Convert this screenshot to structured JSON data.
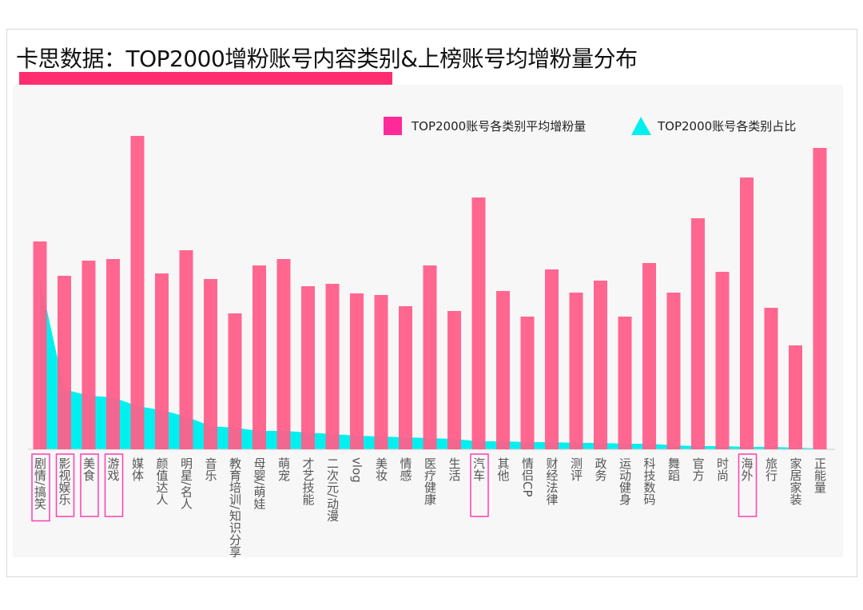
{
  "chart_data": {
    "type": "bar",
    "title": "卡思数据：TOP2000增粉账号内容类别&上榜账号均增粉量分布",
    "xlabel": "",
    "ylabel": "",
    "grid": false,
    "legend_position": "top-right",
    "categories": [
      "剧情/搞笑",
      "影视娱乐",
      "美食",
      "游戏",
      "媒体",
      "颜值达人",
      "明星/名人",
      "音乐",
      "教育培训/知识分享",
      "母婴/萌娃",
      "萌宠",
      "才艺技能",
      "二次元/动漫",
      "vlog",
      "美妆",
      "情感",
      "医疗健康",
      "生活",
      "汽车",
      "其他",
      "情侣CP",
      "财经法律",
      "测评",
      "政务",
      "运动健身",
      "科技数码",
      "舞蹈",
      "官方",
      "时尚",
      "海外",
      "旅行",
      "家居家装",
      "正能量"
    ],
    "highlighted": [
      "剧情/搞笑",
      "影视娱乐",
      "美食",
      "游戏",
      "汽车",
      "海外"
    ],
    "series": [
      {
        "name": "TOP2000账号各类别平均增粉量",
        "type": "bar",
        "color": "#ff5f8a",
        "values": [
          260,
          217,
          236,
          238,
          392,
          220,
          249,
          213,
          170,
          230,
          238,
          204,
          207,
          195,
          193,
          179,
          230,
          173,
          315,
          198,
          166,
          225,
          196,
          211,
          166,
          233,
          196,
          289,
          222,
          340,
          177,
          130,
          377
        ]
      },
      {
        "name": "TOP2000账号各类别占比",
        "type": "area",
        "color": "#00f0f0",
        "values": [
          214,
          75,
          67,
          65,
          54,
          49,
          41,
          29,
          27,
          23,
          23,
          21,
          19,
          17,
          16,
          15,
          14,
          13,
          10,
          10,
          9,
          9,
          8,
          8,
          7,
          7,
          5,
          4,
          4,
          3,
          3,
          2,
          1
        ]
      }
    ]
  },
  "colors": {
    "accent": "#ff2d6f",
    "highlight_box": "#ff3fae",
    "bar": "#ff5f8a",
    "area": "#00f0f0",
    "legend_square": "#ff2a9a"
  }
}
